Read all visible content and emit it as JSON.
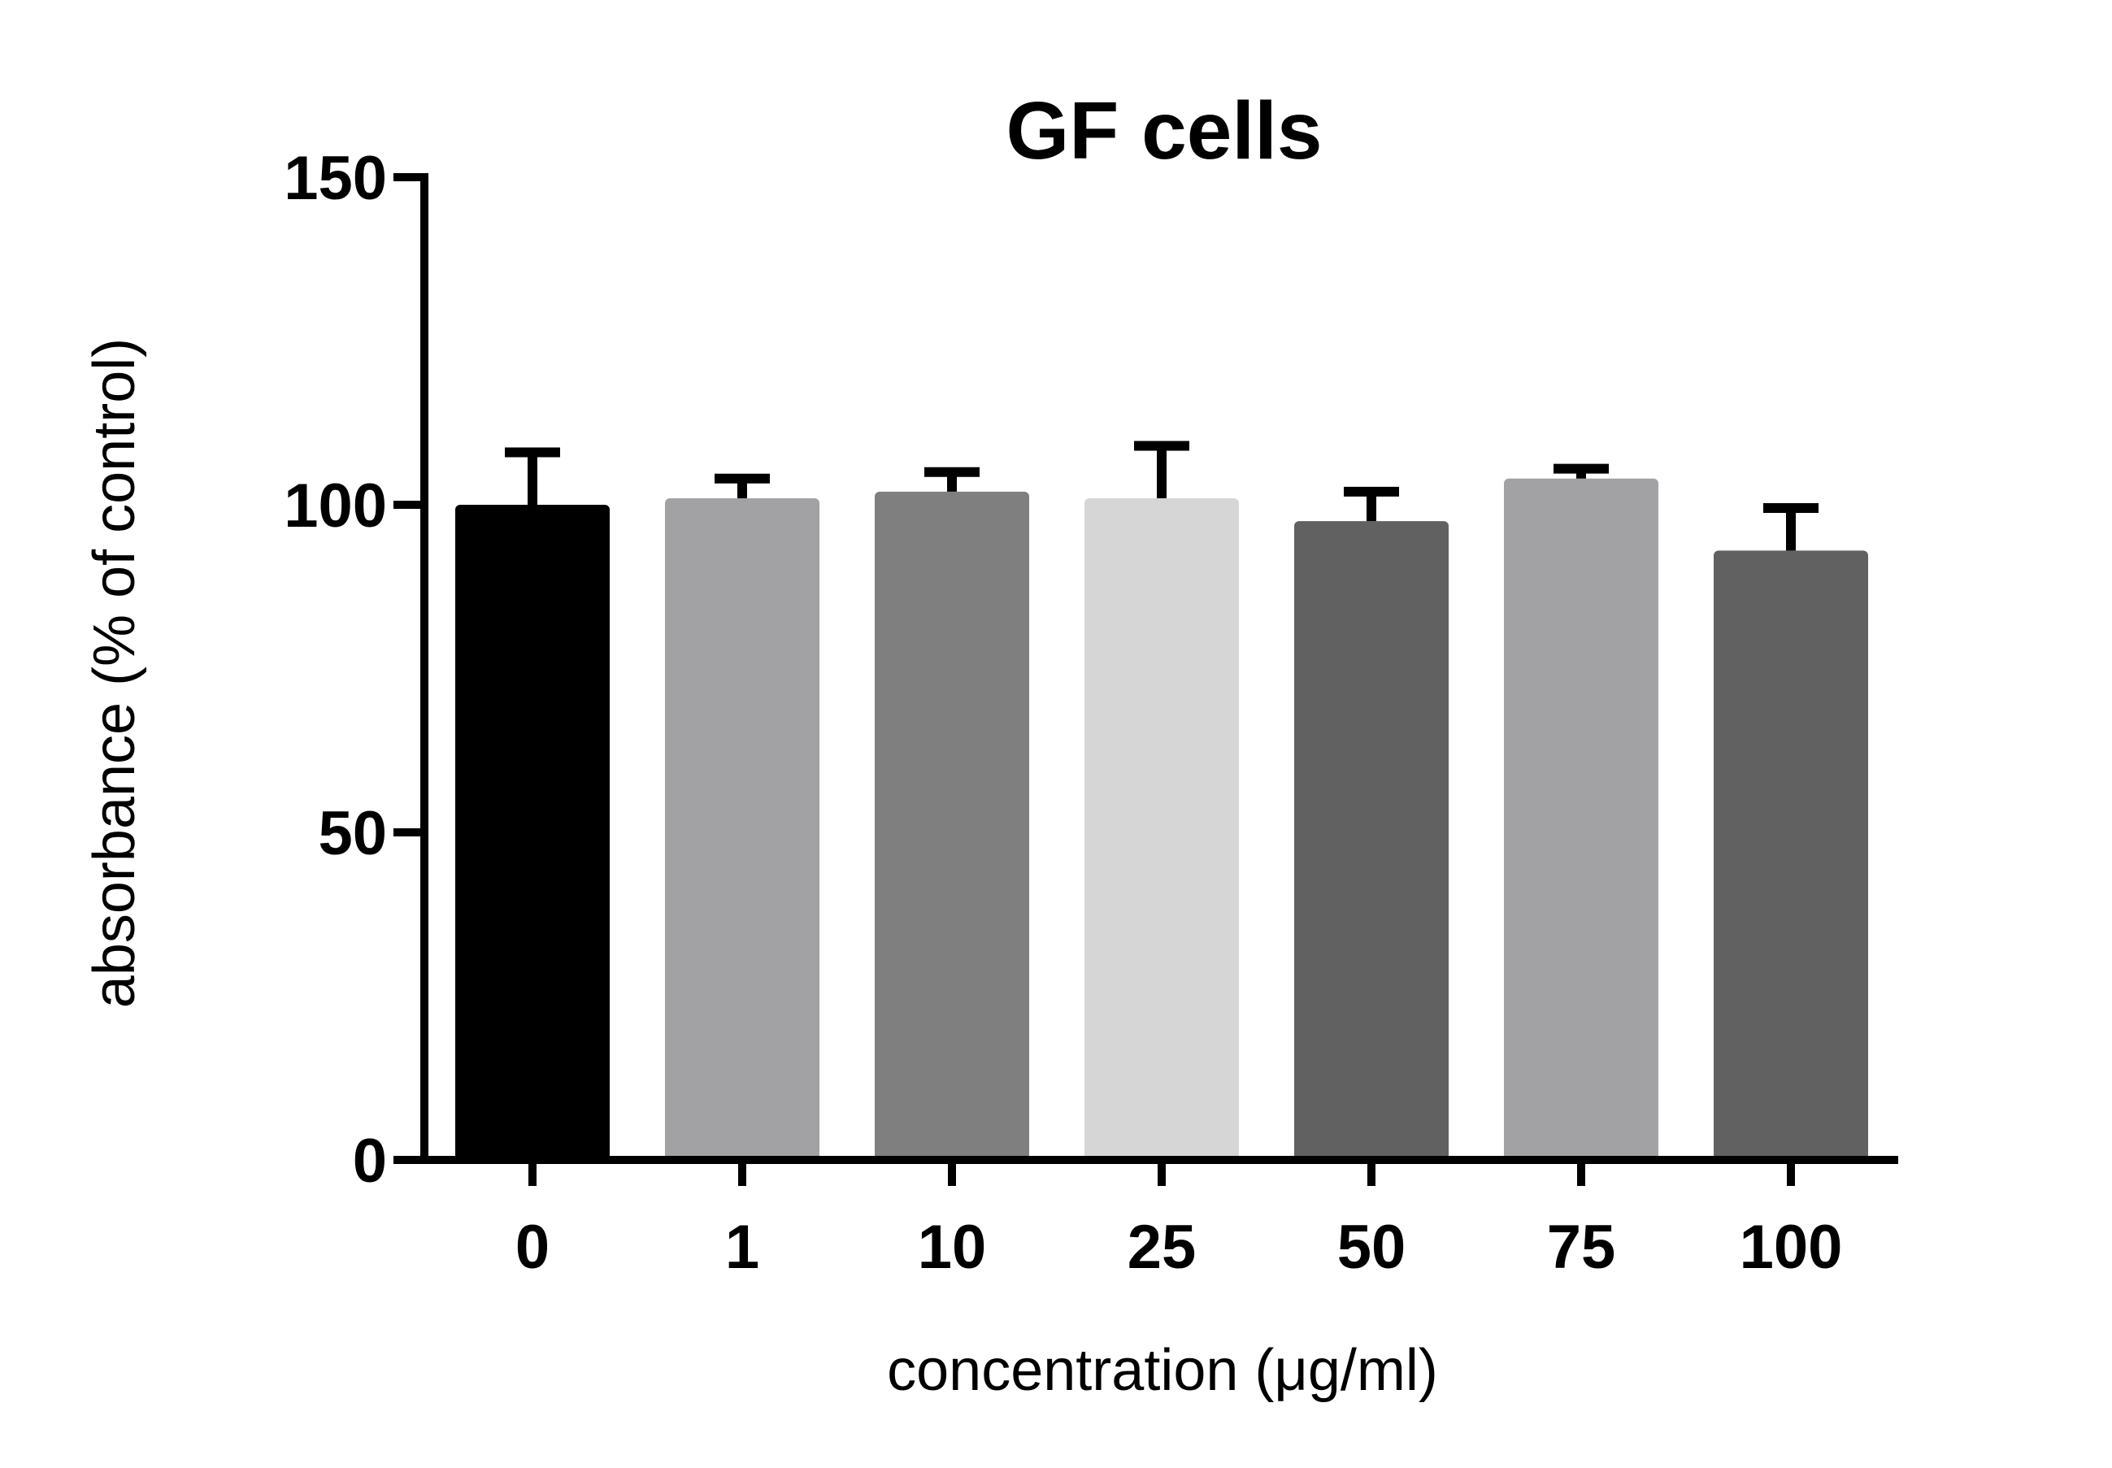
{
  "chart_data": {
    "type": "bar",
    "title": "GF cells",
    "xlabel": "concentration (μg/ml)",
    "ylabel": "absorbance (% of control)",
    "categories": [
      "0",
      "1",
      "10",
      "25",
      "50",
      "75",
      "100"
    ],
    "values": [
      100,
      101,
      102,
      101,
      97.5,
      104,
      93
    ],
    "error_upper": [
      108,
      104,
      105,
      109,
      102,
      105.5,
      99.5
    ],
    "colors": [
      "#000000",
      "#a2a2a5",
      "#7f7f7f",
      "#d6d6d6",
      "#616161",
      "#a2a2a5",
      "#616161"
    ],
    "ylim": [
      0,
      150
    ],
    "yticks": [
      "0",
      "50",
      "100",
      "150"
    ],
    "ytick_values": [
      0,
      50,
      100,
      150
    ],
    "grid": false,
    "legend": "none"
  }
}
